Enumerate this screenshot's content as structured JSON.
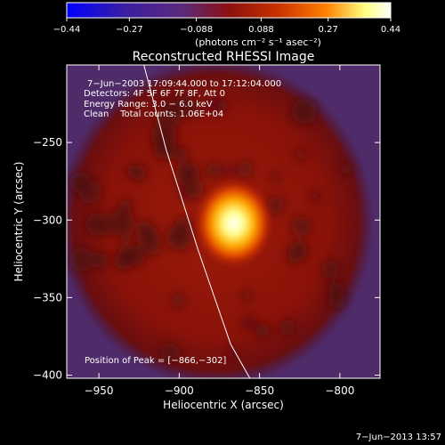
{
  "chart_data": {
    "type": "heatmap",
    "title": "Reconstructed RHESSI Image",
    "xlabel": "Heliocentric X (arcsec)",
    "ylabel": "Heliocentric Y (arcsec)",
    "xlim": [
      -970,
      -775
    ],
    "ylim": [
      -402,
      -200
    ],
    "x_ticks": [
      -950,
      -900,
      -850,
      -800
    ],
    "y_ticks": [
      -250,
      -300,
      -350,
      -400
    ],
    "x_tick_labels": [
      "−950",
      "−900",
      "−850",
      "−800"
    ],
    "y_tick_labels": [
      "−250",
      "−300",
      "−350",
      "−400"
    ],
    "colorbar": {
      "range": [
        -0.44,
        0.44
      ],
      "ticks": [
        -0.44,
        -0.27,
        -0.088,
        0.088,
        0.27,
        0.44
      ],
      "tick_labels": [
        "−0.44",
        "−0.27",
        "−0.088",
        "0.088",
        "0.27",
        "0.44"
      ],
      "unit_label": "(photons cm⁻² s⁻¹ asec⁻²)",
      "colors": [
        "#0000ff",
        "#3b1ea0",
        "#5a2a7e",
        "#8b1010",
        "#c83000",
        "#ff8000",
        "#ffff80",
        "#ffffff"
      ]
    },
    "annotations": [
      "7−Jun−2003 17:09:44.000 to 17:12:04.000",
      "Detectors: 4F 5F 6F 7F 8F, Att 0",
      "Energy Range: 3.0 − 6.0 keV",
      "Clean    Total counts: 1.06E+04"
    ],
    "peak": {
      "label": "Position of Peak = [−866,−302]",
      "x": -866,
      "y": -302,
      "value": 0.44
    },
    "limb_line": [
      {
        "x": -922,
        "y": -200
      },
      {
        "x": -908,
        "y": -255
      },
      {
        "x": -888,
        "y": -320
      },
      {
        "x": -868,
        "y": -380
      },
      {
        "x": -856,
        "y": -402
      }
    ],
    "colors": {
      "background": "#000000",
      "plot_bg": "#5a2f6e",
      "disk": "#8a1208",
      "blob_dark": "#4a0b0c",
      "peak": "#ffff90",
      "text": "#ffffff"
    }
  },
  "footer_date": "7−Jun−2013 13:57"
}
